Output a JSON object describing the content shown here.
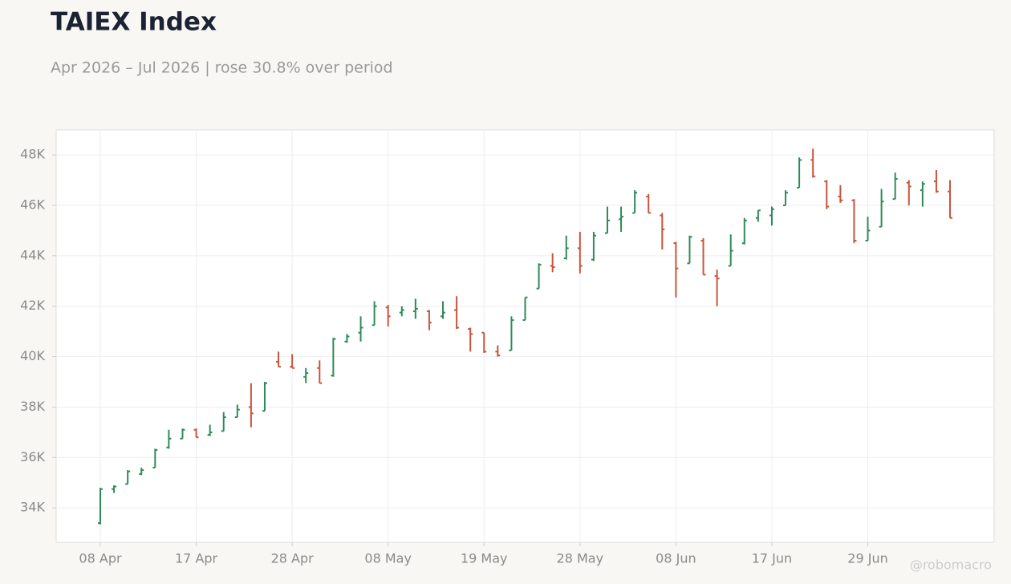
{
  "chart_data": {
    "type": "ohlc",
    "title": "TAIEX Index",
    "subtitle": "Apr 2026 – Jul 2026 | rose 30.8% over period",
    "watermark": "@robomacro",
    "categories": [
      "08 Apr",
      null,
      null,
      null,
      null,
      null,
      null,
      "17 Apr",
      null,
      null,
      null,
      null,
      null,
      null,
      "28 Apr",
      null,
      null,
      null,
      null,
      null,
      null,
      "08 May",
      null,
      null,
      null,
      null,
      null,
      null,
      "19 May",
      null,
      null,
      null,
      null,
      null,
      null,
      "28 May",
      null,
      null,
      null,
      null,
      null,
      null,
      "08 Jun",
      null,
      null,
      null,
      null,
      null,
      null,
      "17 Jun",
      null,
      null,
      null,
      null,
      null,
      null,
      "29 Jun",
      null,
      null,
      null,
      null,
      null,
      null
    ],
    "open": [
      33400,
      34750,
      34950,
      35350,
      35600,
      36400,
      36750,
      37100,
      36900,
      37050,
      37600,
      38000,
      37850,
      39800,
      39600,
      39200,
      39550,
      39250,
      40600,
      40950,
      41250,
      41950,
      41750,
      41800,
      41800,
      41600,
      41850,
      41100,
      40950,
      40200,
      40250,
      41450,
      42700,
      43600,
      43900,
      44300,
      43850,
      44900,
      45450,
      45700,
      46350,
      45600,
      44500,
      43700,
      44600,
      43200,
      43600,
      44500,
      45500,
      45600,
      46000,
      46700,
      47800,
      46950,
      46350,
      46200,
      44600,
      45150,
      46250,
      46900,
      46600,
      46950,
      46550
    ],
    "high": [
      34800,
      34900,
      35500,
      35600,
      36350,
      37100,
      37150,
      37150,
      37300,
      37800,
      38100,
      38950,
      39000,
      40200,
      40100,
      39550,
      39850,
      40750,
      40900,
      41600,
      42200,
      42050,
      42000,
      42300,
      41850,
      42200,
      42400,
      41150,
      40950,
      40450,
      41600,
      42350,
      43700,
      44100,
      44800,
      44950,
      44950,
      45950,
      45950,
      46600,
      46450,
      45700,
      44550,
      44800,
      44700,
      43450,
      44850,
      45500,
      45800,
      45950,
      46600,
      47900,
      48250,
      47000,
      46800,
      46250,
      45550,
      46650,
      47300,
      47000,
      46950,
      47400,
      47000
    ],
    "low": [
      33350,
      34600,
      34950,
      35300,
      35600,
      36350,
      36750,
      36800,
      36850,
      37050,
      37600,
      37200,
      37850,
      39600,
      39550,
      38950,
      38950,
      39200,
      40550,
      40600,
      41250,
      41200,
      41600,
      41500,
      41050,
      41500,
      41100,
      40200,
      40150,
      40000,
      40250,
      41450,
      42700,
      43350,
      43850,
      43300,
      43800,
      44900,
      44950,
      45700,
      45700,
      44250,
      42350,
      43700,
      43250,
      42000,
      43600,
      44450,
      45350,
      45200,
      46000,
      46700,
      47100,
      45850,
      46100,
      44500,
      44600,
      45150,
      46250,
      46000,
      45950,
      46500,
      45500
    ],
    "close": [
      34750,
      34850,
      35450,
      35500,
      36300,
      36750,
      37100,
      36800,
      37000,
      37600,
      37900,
      37750,
      38950,
      39600,
      39550,
      39350,
      38950,
      40700,
      40800,
      41150,
      42000,
      41600,
      41850,
      41900,
      41350,
      41750,
      41150,
      40900,
      40200,
      40050,
      41450,
      42350,
      43650,
      43550,
      44300,
      43600,
      44800,
      45400,
      45550,
      46500,
      45700,
      45050,
      43500,
      44750,
      43250,
      43100,
      44200,
      45400,
      45800,
      45850,
      46500,
      47800,
      47150,
      45950,
      46200,
      44600,
      45000,
      46150,
      47050,
      46750,
      46850,
      46550,
      45500
    ],
    "up_color": "#2e8b57",
    "down_color": "#c8553d",
    "ylim": [
      32640,
      48990
    ],
    "yticks": [
      {
        "value": 34000,
        "label": "34K"
      },
      {
        "value": 36000,
        "label": "36K"
      },
      {
        "value": 38000,
        "label": "38K"
      },
      {
        "value": 40000,
        "label": "40K"
      },
      {
        "value": 42000,
        "label": "42K"
      },
      {
        "value": 44000,
        "label": "44K"
      },
      {
        "value": 46000,
        "label": "46K"
      },
      {
        "value": 48000,
        "label": "48K"
      }
    ],
    "grid": true
  }
}
